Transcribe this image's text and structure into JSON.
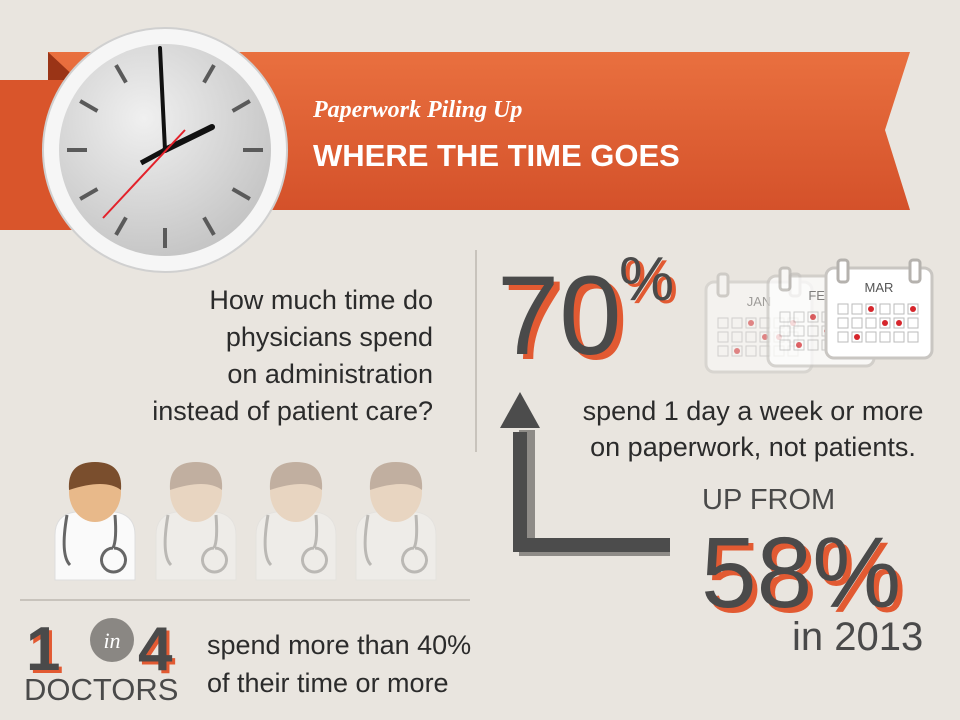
{
  "header": {
    "subtitle": "Paperwork Piling Up",
    "title": "WHERE THE TIME GOES"
  },
  "question": [
    "How much time do",
    "physicians spend",
    "on administration",
    "instead of patient care?"
  ],
  "stat_main": {
    "number": "70",
    "symbol": "%",
    "text": [
      "spend 1 day a week or more",
      "on paperwork, not patients."
    ]
  },
  "calendars": [
    "JAN",
    "FEB",
    "MAR"
  ],
  "stat_prior": {
    "lead": "UP FROM",
    "number": "58%",
    "tail": "in 2013"
  },
  "ratio": {
    "numerator": "1",
    "word": "in",
    "denominator": "4",
    "unit": "DOCTORS",
    "text": [
      "spend more than 40%",
      "of their time or more"
    ]
  }
}
